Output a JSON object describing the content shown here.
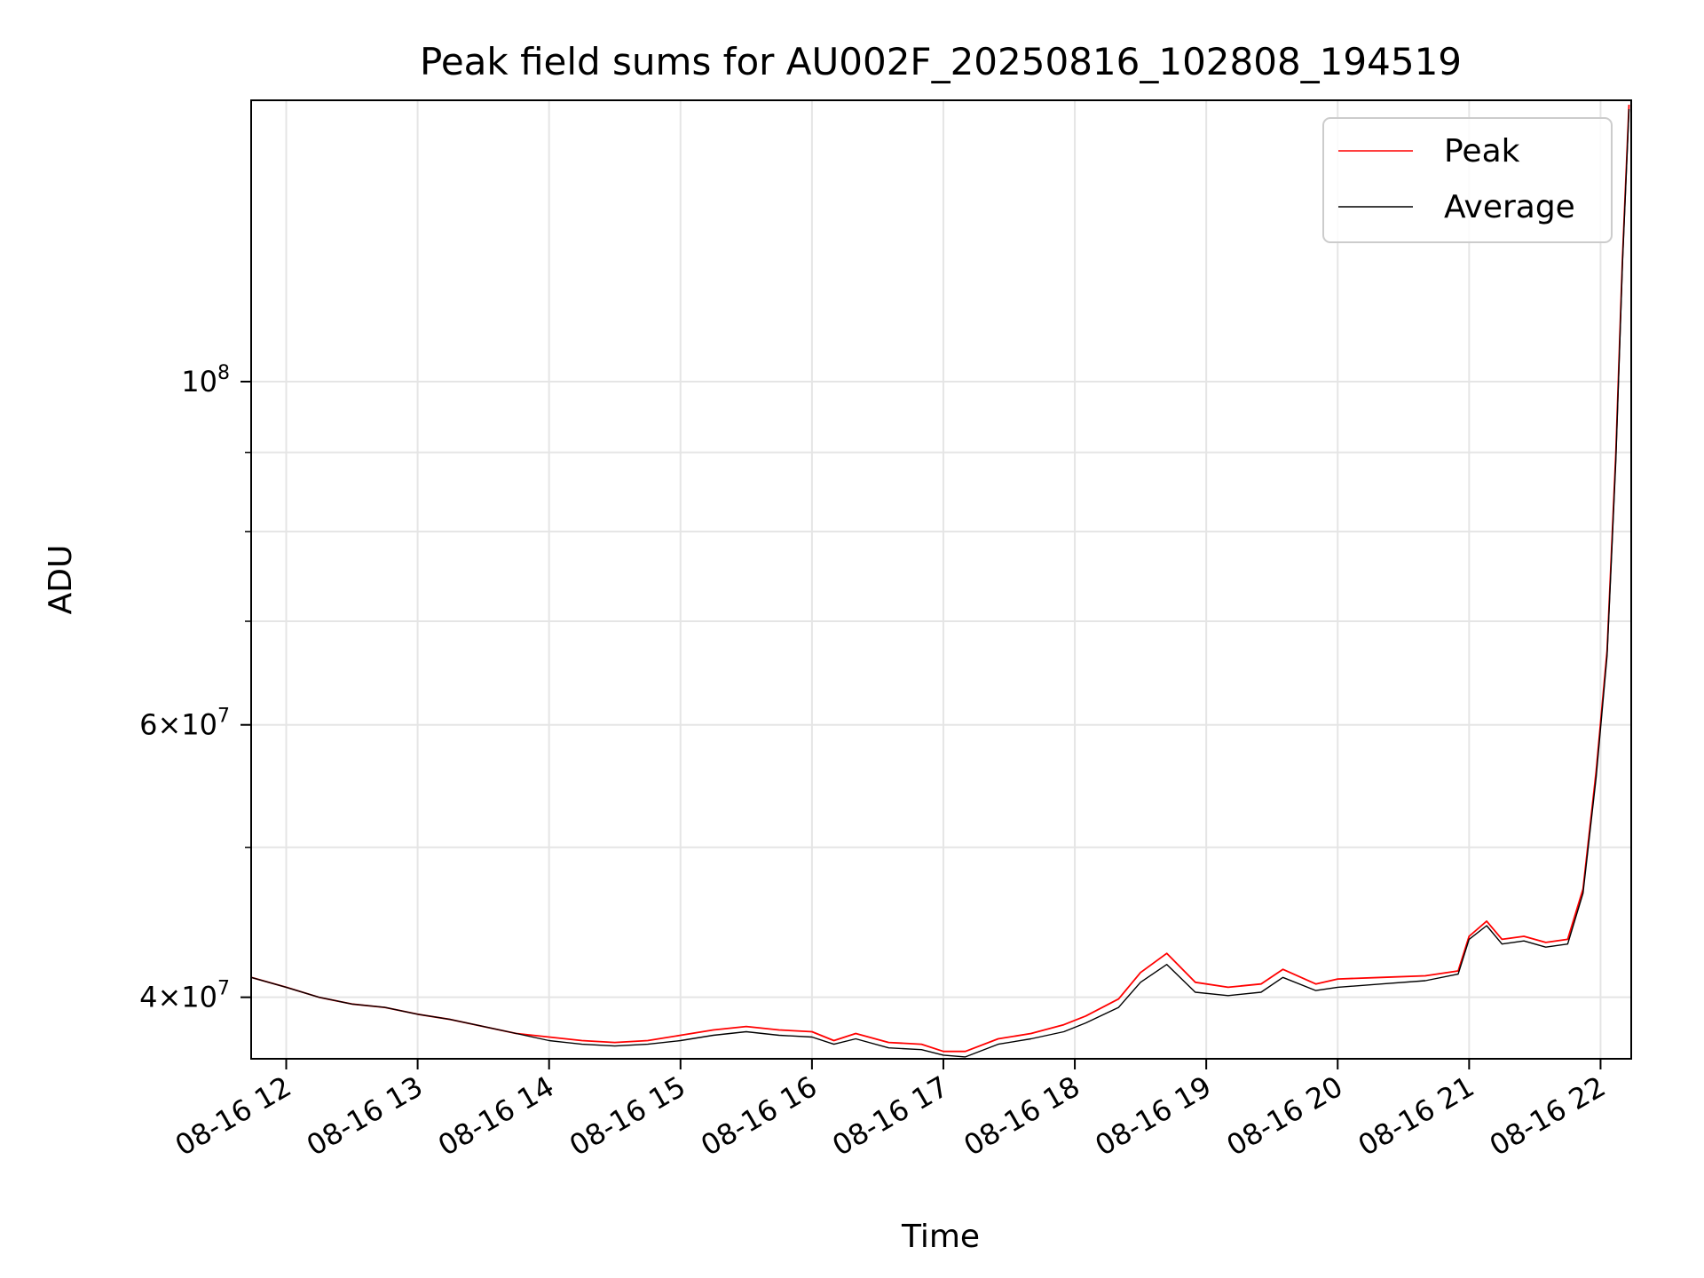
{
  "chart_data": {
    "type": "line",
    "title": "Peak field sums for AU002F_20250816_102808_194519",
    "xlabel": "Time",
    "ylabel": "ADU",
    "y_scale": "log",
    "ylim": [
      36500000,
      152000000
    ],
    "xlim": [
      "2025-08-16 11:44",
      "2025-08-16 22:14"
    ],
    "grid": true,
    "legend_position": "upper right",
    "x_ticks": [
      {
        "t": "2025-08-16 12:00",
        "label": "08-16 12"
      },
      {
        "t": "2025-08-16 13:00",
        "label": "08-16 13"
      },
      {
        "t": "2025-08-16 14:00",
        "label": "08-16 14"
      },
      {
        "t": "2025-08-16 15:00",
        "label": "08-16 15"
      },
      {
        "t": "2025-08-16 16:00",
        "label": "08-16 16"
      },
      {
        "t": "2025-08-16 17:00",
        "label": "08-16 17"
      },
      {
        "t": "2025-08-16 18:00",
        "label": "08-16 18"
      },
      {
        "t": "2025-08-16 19:00",
        "label": "08-16 19"
      },
      {
        "t": "2025-08-16 20:00",
        "label": "08-16 20"
      },
      {
        "t": "2025-08-16 21:00",
        "label": "08-16 21"
      },
      {
        "t": "2025-08-16 22:00",
        "label": "08-16 22"
      }
    ],
    "y_major_ticks": [
      {
        "v": 40000000,
        "base": "4×10",
        "exp": "7"
      },
      {
        "v": 60000000,
        "base": "6×10",
        "exp": "7"
      },
      {
        "v": 100000000,
        "base": "10",
        "exp": "8"
      }
    ],
    "y_minor_ticks": [
      50000000,
      70000000,
      80000000,
      90000000
    ],
    "series": [
      {
        "name": "Peak",
        "color": "#ff0000",
        "points": [
          [
            "2025-08-16 11:44",
            41200000
          ],
          [
            "2025-08-16 12:00",
            40600000
          ],
          [
            "2025-08-16 12:15",
            40000000
          ],
          [
            "2025-08-16 12:30",
            39600000
          ],
          [
            "2025-08-16 12:45",
            39400000
          ],
          [
            "2025-08-16 13:00",
            39000000
          ],
          [
            "2025-08-16 13:15",
            38700000
          ],
          [
            "2025-08-16 13:30",
            38300000
          ],
          [
            "2025-08-16 13:45",
            37900000
          ],
          [
            "2025-08-16 14:00",
            37700000
          ],
          [
            "2025-08-16 14:15",
            37500000
          ],
          [
            "2025-08-16 14:30",
            37400000
          ],
          [
            "2025-08-16 14:45",
            37500000
          ],
          [
            "2025-08-16 15:00",
            37800000
          ],
          [
            "2025-08-16 15:15",
            38100000
          ],
          [
            "2025-08-16 15:30",
            38300000
          ],
          [
            "2025-08-16 15:45",
            38100000
          ],
          [
            "2025-08-16 16:00",
            38000000
          ],
          [
            "2025-08-16 16:10",
            37500000
          ],
          [
            "2025-08-16 16:20",
            37900000
          ],
          [
            "2025-08-16 16:35",
            37400000
          ],
          [
            "2025-08-16 16:50",
            37300000
          ],
          [
            "2025-08-16 17:00",
            36900000
          ],
          [
            "2025-08-16 17:10",
            36900000
          ],
          [
            "2025-08-16 17:25",
            37600000
          ],
          [
            "2025-08-16 17:40",
            37900000
          ],
          [
            "2025-08-16 17:55",
            38400000
          ],
          [
            "2025-08-16 18:05",
            38900000
          ],
          [
            "2025-08-16 18:20",
            39900000
          ],
          [
            "2025-08-16 18:30",
            41500000
          ],
          [
            "2025-08-16 18:42",
            42700000
          ],
          [
            "2025-08-16 18:55",
            40900000
          ],
          [
            "2025-08-16 19:10",
            40600000
          ],
          [
            "2025-08-16 19:25",
            40800000
          ],
          [
            "2025-08-16 19:35",
            41700000
          ],
          [
            "2025-08-16 19:50",
            40800000
          ],
          [
            "2025-08-16 20:00",
            41100000
          ],
          [
            "2025-08-16 20:20",
            41200000
          ],
          [
            "2025-08-16 20:40",
            41300000
          ],
          [
            "2025-08-16 20:55",
            41600000
          ],
          [
            "2025-08-16 21:00",
            43800000
          ],
          [
            "2025-08-16 21:08",
            44800000
          ],
          [
            "2025-08-16 21:15",
            43600000
          ],
          [
            "2025-08-16 21:25",
            43800000
          ],
          [
            "2025-08-16 21:35",
            43400000
          ],
          [
            "2025-08-16 21:45",
            43600000
          ],
          [
            "2025-08-16 21:52",
            47000000
          ],
          [
            "2025-08-16 21:58",
            56000000
          ],
          [
            "2025-08-16 22:03",
            67000000
          ],
          [
            "2025-08-16 22:07",
            90000000
          ],
          [
            "2025-08-16 22:10",
            120000000
          ],
          [
            "2025-08-16 22:13",
            151000000
          ]
        ]
      },
      {
        "name": "Average",
        "color": "#000000",
        "points": [
          [
            "2025-08-16 11:44",
            41200000
          ],
          [
            "2025-08-16 12:00",
            40600000
          ],
          [
            "2025-08-16 12:15",
            40000000
          ],
          [
            "2025-08-16 12:30",
            39600000
          ],
          [
            "2025-08-16 12:45",
            39400000
          ],
          [
            "2025-08-16 13:00",
            39000000
          ],
          [
            "2025-08-16 13:15",
            38700000
          ],
          [
            "2025-08-16 13:30",
            38300000
          ],
          [
            "2025-08-16 13:45",
            37900000
          ],
          [
            "2025-08-16 14:00",
            37500000
          ],
          [
            "2025-08-16 14:15",
            37300000
          ],
          [
            "2025-08-16 14:30",
            37200000
          ],
          [
            "2025-08-16 14:45",
            37300000
          ],
          [
            "2025-08-16 15:00",
            37500000
          ],
          [
            "2025-08-16 15:15",
            37800000
          ],
          [
            "2025-08-16 15:30",
            38000000
          ],
          [
            "2025-08-16 15:45",
            37800000
          ],
          [
            "2025-08-16 16:00",
            37700000
          ],
          [
            "2025-08-16 16:10",
            37300000
          ],
          [
            "2025-08-16 16:20",
            37600000
          ],
          [
            "2025-08-16 16:35",
            37100000
          ],
          [
            "2025-08-16 16:50",
            37000000
          ],
          [
            "2025-08-16 17:00",
            36700000
          ],
          [
            "2025-08-16 17:10",
            36600000
          ],
          [
            "2025-08-16 17:25",
            37300000
          ],
          [
            "2025-08-16 17:40",
            37600000
          ],
          [
            "2025-08-16 17:55",
            38000000
          ],
          [
            "2025-08-16 18:05",
            38500000
          ],
          [
            "2025-08-16 18:20",
            39400000
          ],
          [
            "2025-08-16 18:30",
            40900000
          ],
          [
            "2025-08-16 18:42",
            42000000
          ],
          [
            "2025-08-16 18:55",
            40300000
          ],
          [
            "2025-08-16 19:10",
            40100000
          ],
          [
            "2025-08-16 19:25",
            40300000
          ],
          [
            "2025-08-16 19:35",
            41200000
          ],
          [
            "2025-08-16 19:50",
            40400000
          ],
          [
            "2025-08-16 20:00",
            40600000
          ],
          [
            "2025-08-16 20:20",
            40800000
          ],
          [
            "2025-08-16 20:40",
            41000000
          ],
          [
            "2025-08-16 20:55",
            41400000
          ],
          [
            "2025-08-16 21:00",
            43600000
          ],
          [
            "2025-08-16 21:08",
            44500000
          ],
          [
            "2025-08-16 21:15",
            43300000
          ],
          [
            "2025-08-16 21:25",
            43500000
          ],
          [
            "2025-08-16 21:35",
            43100000
          ],
          [
            "2025-08-16 21:45",
            43300000
          ],
          [
            "2025-08-16 21:52",
            46700000
          ],
          [
            "2025-08-16 21:58",
            55500000
          ],
          [
            "2025-08-16 22:03",
            66500000
          ],
          [
            "2025-08-16 22:07",
            89000000
          ],
          [
            "2025-08-16 22:10",
            119000000
          ],
          [
            "2025-08-16 22:13",
            150000000
          ]
        ]
      }
    ]
  }
}
